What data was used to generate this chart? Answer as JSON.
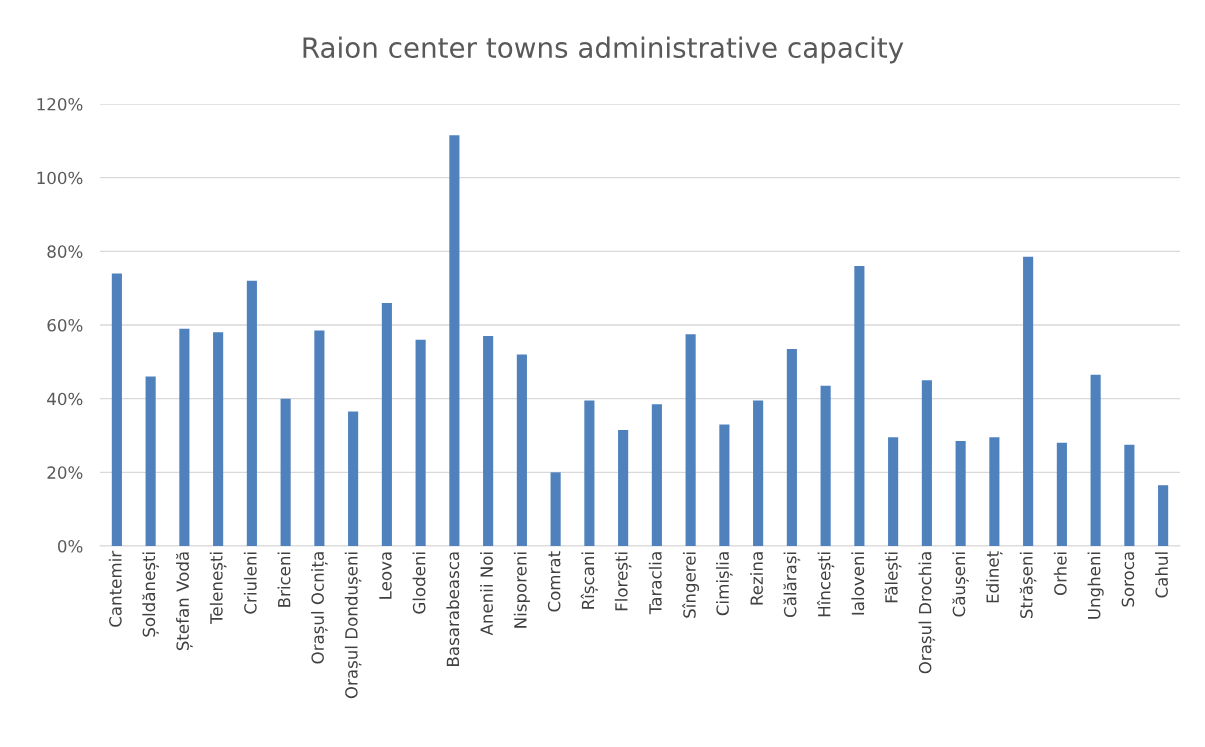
{
  "chart_data": {
    "type": "bar",
    "title": "Raion center towns administrative capacity",
    "categories": [
      "Cantemir",
      "Șoldănești",
      "Ștefan Vodă",
      "Telenești",
      "Criuleni",
      "Briceni",
      "Orașul Ocnița",
      "Orașul Dondușeni",
      "Leova",
      "Glodeni",
      "Basarabeasca",
      "Anenii Noi",
      "Nisporeni",
      "Comrat",
      "Rîșcani",
      "Florești",
      "Taraclia",
      "Sîngerei",
      "Cimișlia",
      "Rezina",
      "Călărași",
      "Hîncești",
      "Ialoveni",
      "Fălești",
      "Orașul Drochia",
      "Căușeni",
      "Edineț",
      "Strășeni",
      "Orhei",
      "Ungheni",
      "Soroca",
      "Cahul"
    ],
    "values": [
      74,
      46,
      59,
      58,
      72,
      40,
      58.5,
      36.5,
      66,
      56,
      111.5,
      57,
      52,
      20,
      39.5,
      31.5,
      38.5,
      57.5,
      33,
      39.5,
      53.5,
      43.5,
      76,
      29.5,
      45,
      28.5,
      29.5,
      78.5,
      28,
      46.5,
      27.5,
      16.5
    ],
    "color": "#4f81bd",
    "ylim": [
      0,
      120
    ],
    "yticks": [
      {
        "value": 0,
        "label": "0%"
      },
      {
        "value": 20,
        "label": "20%"
      },
      {
        "value": 40,
        "label": "40%"
      },
      {
        "value": 60,
        "label": "60%"
      },
      {
        "value": 80,
        "label": "80%"
      },
      {
        "value": 100,
        "label": "100%"
      },
      {
        "value": 120,
        "label": "120%"
      }
    ],
    "grid": "y"
  }
}
